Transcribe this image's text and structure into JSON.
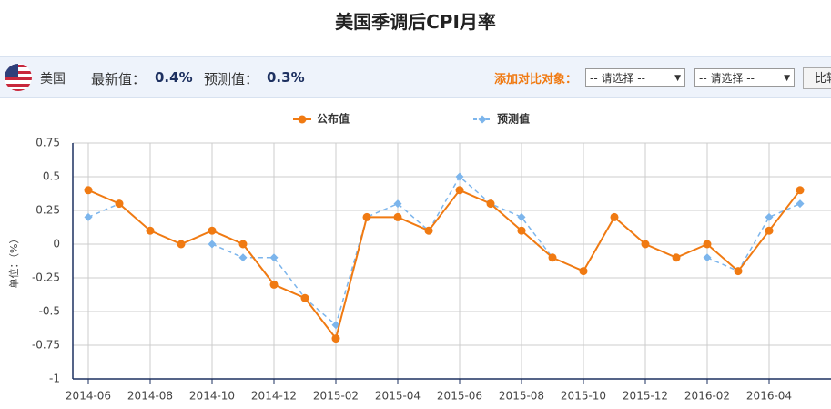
{
  "toolbar": {
    "country": "美国",
    "latest_label": "最新值：",
    "latest_value": "0.4%",
    "forecast_label": "预测值：",
    "forecast_value": "0.3%",
    "compare_label": "添加对比对象：",
    "select_placeholder": "-- 请选择 --",
    "compare_button": "比较"
  },
  "chart_data": {
    "type": "line",
    "title": "美国季调后CPI月率",
    "y_label": "单位：（%）",
    "categories": [
      "2014-06",
      null,
      "2014-08",
      null,
      "2014-10",
      null,
      "2014-12",
      null,
      "2015-02",
      null,
      "2015-04",
      null,
      "2015-06",
      null,
      "2015-08",
      null,
      "2015-10",
      null,
      "2015-12",
      null,
      "2016-02",
      null,
      "2016-04",
      null
    ],
    "series": [
      {
        "name": "预测值",
        "color": "#7cb5ec",
        "dashed": true,
        "marker": "diamond",
        "values": [
          0.2,
          0.3,
          0.1,
          null,
          0.0,
          -0.1,
          -0.1,
          -0.4,
          -0.6,
          0.2,
          0.3,
          0.1,
          0.5,
          0.3,
          0.2,
          -0.1,
          -0.2,
          0.2,
          0.0,
          null,
          -0.1,
          -0.2,
          0.2,
          0.3
        ]
      },
      {
        "name": "公布值",
        "color": "#f07a12",
        "dashed": false,
        "marker": "circle",
        "values": [
          0.4,
          0.3,
          0.1,
          0.0,
          0.1,
          0.0,
          -0.3,
          -0.4,
          -0.7,
          0.2,
          0.2,
          0.1,
          0.4,
          0.3,
          0.1,
          -0.1,
          -0.2,
          0.2,
          0.0,
          -0.1,
          0.0,
          -0.2,
          0.1,
          0.4
        ]
      }
    ],
    "legend_order": [
      1,
      0
    ],
    "ylim": [
      -1,
      0.75
    ],
    "yticks": [
      -1,
      -0.75,
      -0.5,
      -0.25,
      0,
      0.25,
      0.5,
      0.75
    ],
    "grid": true
  }
}
